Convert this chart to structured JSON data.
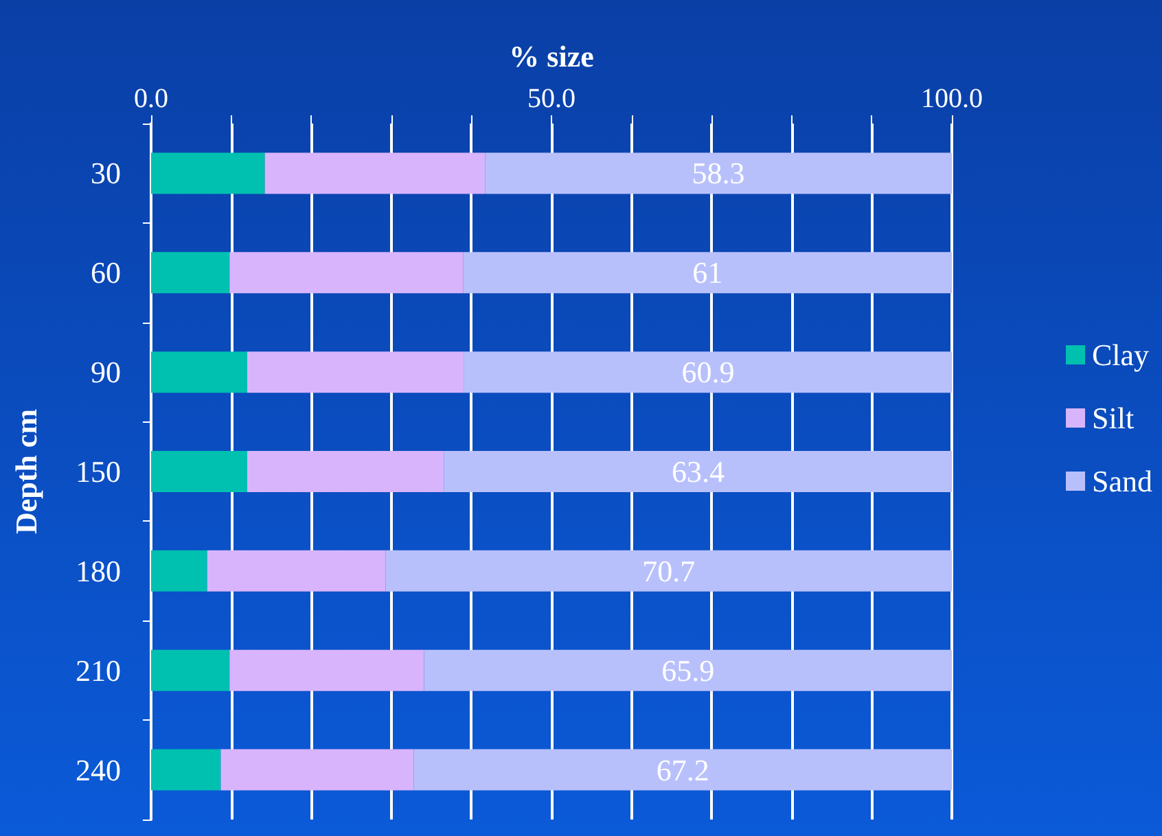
{
  "chart_data": {
    "type": "bar",
    "orientation": "horizontal",
    "stacked": true,
    "xlabel": "% size",
    "ylabel": "Depth cm",
    "categories": [
      "30",
      "60",
      "90",
      "150",
      "180",
      "210",
      "240"
    ],
    "series": [
      {
        "name": "Clay",
        "color": "#00c0b0",
        "values": [
          14.2,
          9.8,
          12.0,
          12.0,
          7.0,
          9.8,
          8.7
        ]
      },
      {
        "name": "Silt",
        "color": "#d8b4fc",
        "values": [
          27.5,
          29.2,
          27.1,
          24.6,
          22.3,
          24.3,
          24.1
        ]
      },
      {
        "name": "Sand",
        "color": "#b8c0fc",
        "values": [
          58.3,
          61,
          60.9,
          63.4,
          70.7,
          65.9,
          67.2
        ],
        "value_labels": [
          "58.3",
          "61",
          "60.9",
          "63.4",
          "70.7",
          "65.9",
          "67.2"
        ]
      }
    ],
    "xlim": [
      0,
      100
    ],
    "xticks": [
      {
        "value": 0,
        "label": "0.0"
      },
      {
        "value": 10,
        "label": null
      },
      {
        "value": 20,
        "label": null
      },
      {
        "value": 30,
        "label": null
      },
      {
        "value": 40,
        "label": null
      },
      {
        "value": 50,
        "label": "50.0"
      },
      {
        "value": 60,
        "label": null
      },
      {
        "value": 70,
        "label": null
      },
      {
        "value": 80,
        "label": null
      },
      {
        "value": 90,
        "label": null
      },
      {
        "value": 100,
        "label": "100.0"
      }
    ],
    "grid": "x",
    "legend": "right"
  }
}
